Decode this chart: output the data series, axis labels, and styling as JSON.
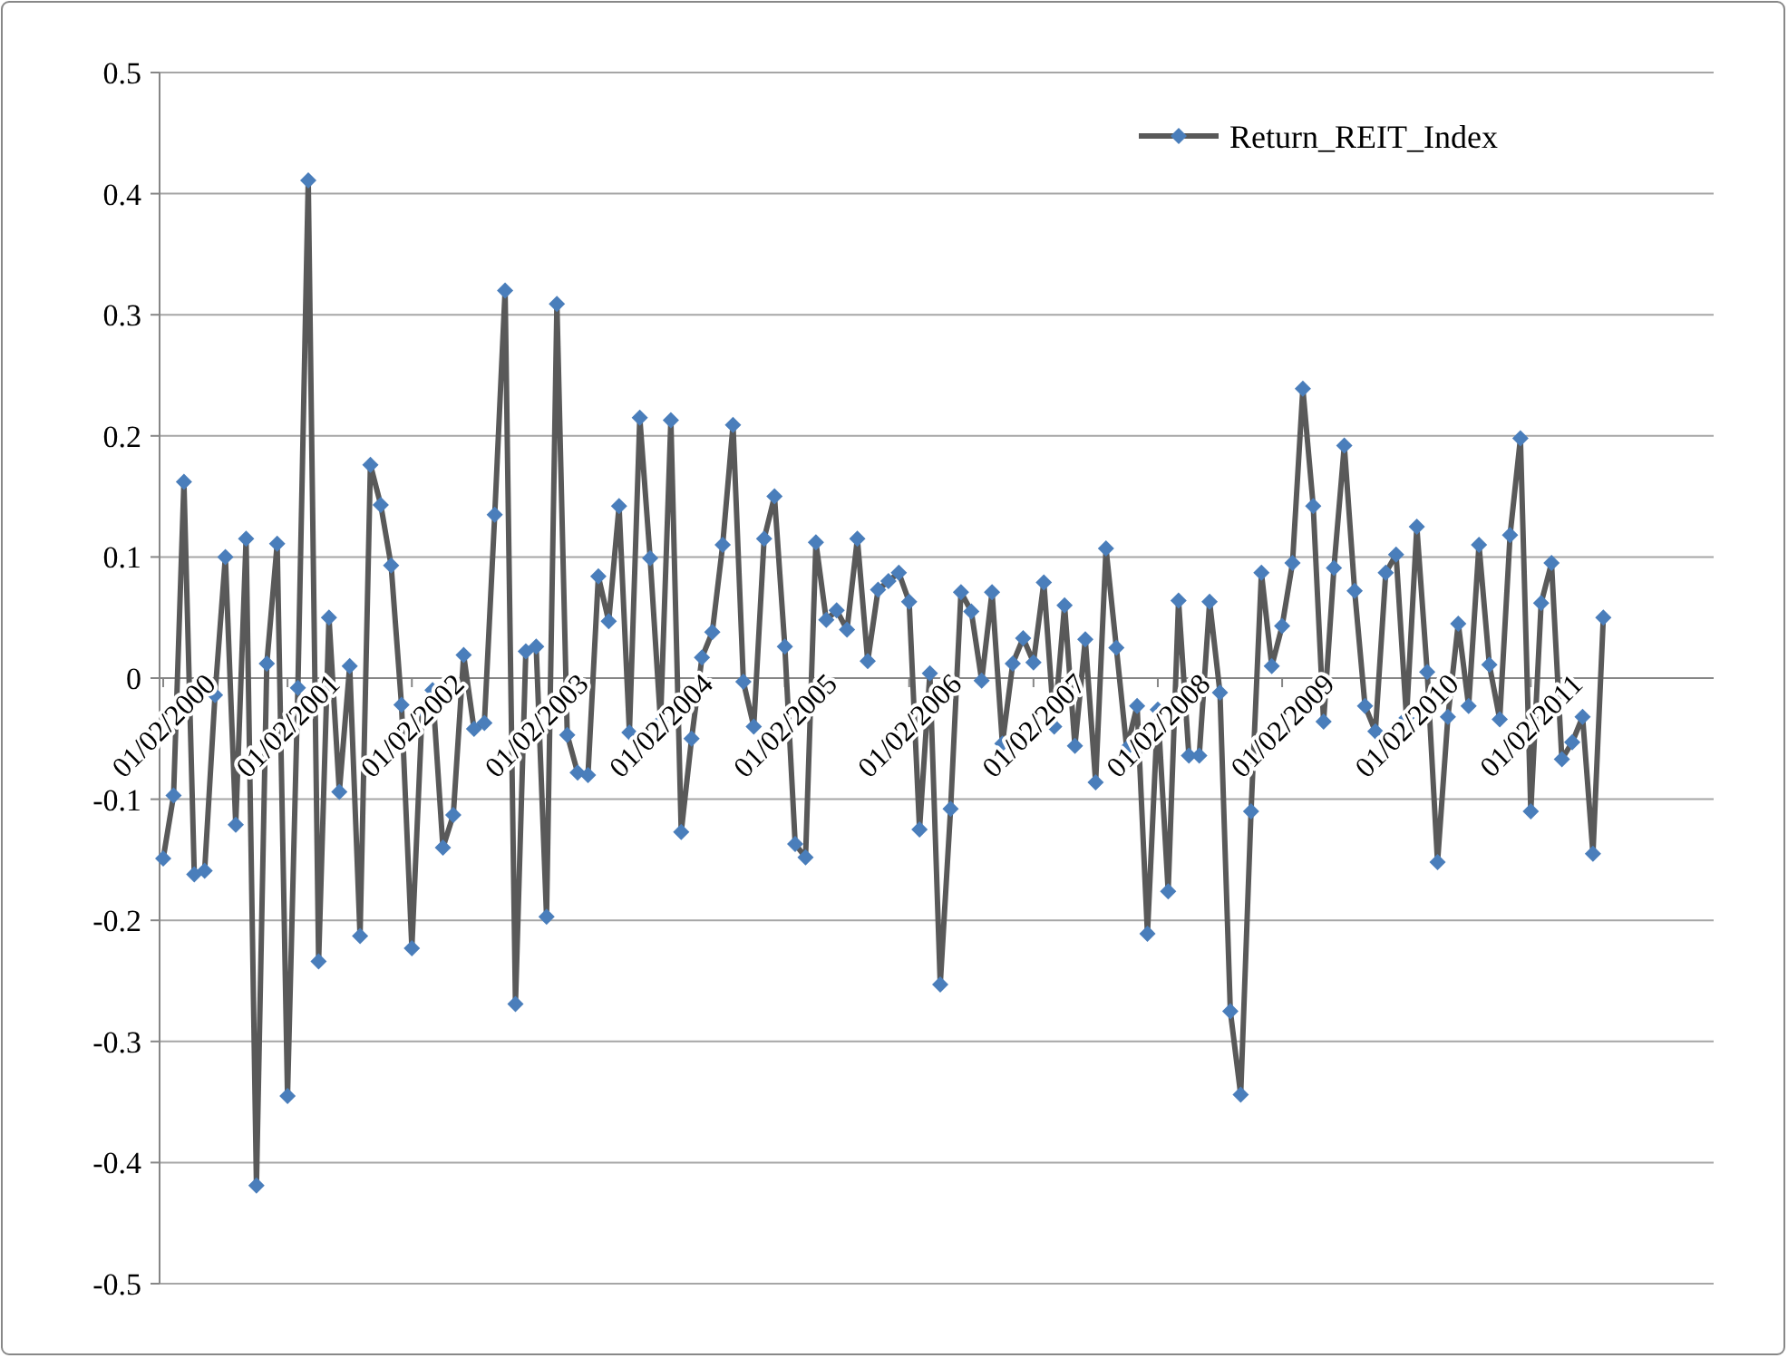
{
  "chart_data": {
    "type": "line",
    "categories": [
      "01/02/2000",
      null,
      null,
      null,
      null,
      null,
      null,
      null,
      null,
      null,
      null,
      null,
      "01/02/2001",
      null,
      null,
      null,
      null,
      null,
      null,
      null,
      null,
      null,
      null,
      null,
      "01/02/2002",
      null,
      null,
      null,
      null,
      null,
      null,
      null,
      null,
      null,
      null,
      null,
      "01/02/2003",
      null,
      null,
      null,
      null,
      null,
      null,
      null,
      null,
      null,
      null,
      null,
      "01/02/2004",
      null,
      null,
      null,
      null,
      null,
      null,
      null,
      null,
      null,
      null,
      null,
      "01/02/2005",
      null,
      null,
      null,
      null,
      null,
      null,
      null,
      null,
      null,
      null,
      null,
      "01/02/2006",
      null,
      null,
      null,
      null,
      null,
      null,
      null,
      null,
      null,
      null,
      null,
      "01/02/2007",
      null,
      null,
      null,
      null,
      null,
      null,
      null,
      null,
      null,
      null,
      null,
      "01/02/2008",
      null,
      null,
      null,
      null,
      null,
      null,
      null,
      null,
      null,
      null,
      null,
      "01/02/2009",
      null,
      null,
      null,
      null,
      null,
      null,
      null,
      null,
      null,
      null,
      null,
      "01/02/2010",
      null,
      null,
      null,
      null,
      null,
      null,
      null,
      null,
      null,
      null,
      null,
      "01/02/2011",
      null,
      null,
      null,
      null,
      null,
      null,
      null
    ],
    "series": [
      {
        "name": "Return_REIT_Index",
        "color": "#4a7ebb",
        "values": [
          -0.149,
          -0.097,
          0.162,
          -0.162,
          -0.159,
          -0.014,
          0.1,
          -0.121,
          0.115,
          -0.419,
          0.012,
          0.111,
          -0.345,
          -0.008,
          0.411,
          -0.234,
          0.05,
          -0.094,
          0.01,
          -0.213,
          0.176,
          0.143,
          0.093,
          -0.022,
          -0.223,
          -0.026,
          -0.01,
          -0.14,
          -0.113,
          0.019,
          -0.042,
          -0.037,
          0.135,
          0.32,
          -0.269,
          0.022,
          0.026,
          -0.197,
          0.309,
          -0.047,
          -0.078,
          -0.08,
          0.084,
          0.047,
          0.142,
          -0.045,
          0.215,
          0.099,
          -0.036,
          0.213,
          -0.127,
          -0.05,
          0.017,
          0.038,
          0.11,
          0.209,
          -0.003,
          -0.04,
          0.115,
          0.15,
          0.026,
          -0.137,
          -0.148,
          0.112,
          0.048,
          0.056,
          0.04,
          0.115,
          0.014,
          0.073,
          0.08,
          0.087,
          0.063,
          -0.125,
          0.004,
          -0.253,
          -0.108,
          0.071,
          0.055,
          -0.002,
          0.071,
          -0.054,
          0.012,
          0.033,
          0.013,
          0.079,
          -0.04,
          0.06,
          -0.056,
          0.032,
          -0.086,
          0.107,
          0.025,
          -0.058,
          -0.023,
          -0.211,
          -0.026,
          -0.176,
          0.064,
          -0.064,
          -0.064,
          0.063,
          -0.012,
          -0.275,
          -0.344,
          -0.11,
          0.087,
          0.01,
          0.043,
          0.095,
          0.239,
          0.142,
          -0.036,
          0.091,
          0.192,
          0.072,
          -0.023,
          -0.044,
          0.087,
          0.102,
          -0.033,
          0.125,
          0.005,
          -0.152,
          -0.032,
          0.045,
          -0.023,
          0.11,
          0.011,
          -0.034,
          0.118,
          0.198,
          -0.11,
          0.062,
          0.095,
          -0.067,
          -0.053,
          -0.032,
          -0.145,
          0.05
        ]
      }
    ],
    "ylim": [
      -0.5,
      0.5
    ],
    "yticks": [
      0.5,
      0.4,
      0.3,
      0.2,
      0.1,
      0,
      -0.1,
      -0.2,
      -0.3,
      -0.4,
      -0.5
    ],
    "grid": "y",
    "legend": "top right",
    "marker": "diamond",
    "line_style": "solid"
  }
}
